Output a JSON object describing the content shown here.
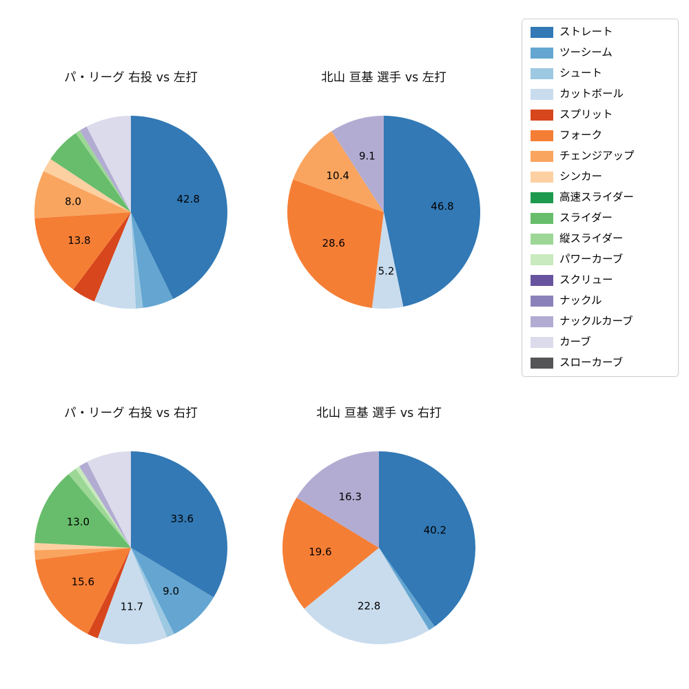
{
  "palette": {
    "ストレート": "#3279b5",
    "ツーシーム": "#64a6d1",
    "シュート": "#9dc8e2",
    "カットボール": "#c9dcee",
    "スプリット": "#d7461d",
    "フォーク": "#f57e35",
    "チェンジアップ": "#faa55f",
    "シンカー": "#fdd0a2",
    "高速スライダー": "#1d9a4e",
    "スライダー": "#67bd6b",
    "縦スライダー": "#9cd796",
    "パワーカーブ": "#c8eabe",
    "スクリュー": "#68549e",
    "ナックル": "#8b81ba",
    "ナックルカーブ": "#b2acd2",
    "カーブ": "#dcdbec",
    "スローカーブ": "#555557"
  },
  "legend": {
    "position": "upper right",
    "items": [
      "ストレート",
      "ツーシーム",
      "シュート",
      "カットボール",
      "スプリット",
      "フォーク",
      "チェンジアップ",
      "シンカー",
      "高速スライダー",
      "スライダー",
      "縦スライダー",
      "パワーカーブ",
      "スクリュー",
      "ナックル",
      "ナックルカーブ",
      "カーブ",
      "スローカーブ"
    ]
  },
  "chart_data": [
    {
      "type": "pie",
      "title": "パ・リーグ 右投 vs 左打",
      "start_angle": "top",
      "direction": "clockwise",
      "slices": [
        {
          "name": "ストレート",
          "value": 42.8,
          "show_value": true
        },
        {
          "name": "ツーシーム",
          "value": 5.2,
          "show_value": false
        },
        {
          "name": "シュート",
          "value": 1.2,
          "show_value": false
        },
        {
          "name": "カットボール",
          "value": 7.0,
          "show_value": false
        },
        {
          "name": "スプリット",
          "value": 4.0,
          "show_value": false
        },
        {
          "name": "フォーク",
          "value": 13.8,
          "show_value": true
        },
        {
          "name": "チェンジアップ",
          "value": 8.0,
          "show_value": true
        },
        {
          "name": "シンカー",
          "value": 2.3,
          "show_value": false
        },
        {
          "name": "スライダー",
          "value": 6.0,
          "show_value": false
        },
        {
          "name": "縦スライダー",
          "value": 0.8,
          "show_value": false
        },
        {
          "name": "ナックルカーブ",
          "value": 1.3,
          "show_value": false
        },
        {
          "name": "カーブ",
          "value": 7.6,
          "show_value": false
        }
      ]
    },
    {
      "type": "pie",
      "title": "北山 亘基 選手 vs 左打",
      "start_angle": "top",
      "direction": "clockwise",
      "slices": [
        {
          "name": "ストレート",
          "value": 46.8,
          "show_value": true
        },
        {
          "name": "カットボール",
          "value": 5.2,
          "show_value": true
        },
        {
          "name": "フォーク",
          "value": 28.6,
          "show_value": true
        },
        {
          "name": "チェンジアップ",
          "value": 10.4,
          "show_value": true
        },
        {
          "name": "ナックルカーブ",
          "value": 9.1,
          "show_value": true
        }
      ]
    },
    {
      "type": "pie",
      "title": "パ・リーグ 右投 vs 右打",
      "start_angle": "top",
      "direction": "clockwise",
      "slices": [
        {
          "name": "ストレート",
          "value": 33.6,
          "show_value": true
        },
        {
          "name": "ツーシーム",
          "value": 9.0,
          "show_value": true
        },
        {
          "name": "シュート",
          "value": 1.3,
          "show_value": false
        },
        {
          "name": "カットボール",
          "value": 11.7,
          "show_value": true
        },
        {
          "name": "スプリット",
          "value": 1.8,
          "show_value": false
        },
        {
          "name": "フォーク",
          "value": 15.6,
          "show_value": true
        },
        {
          "name": "チェンジアップ",
          "value": 1.6,
          "show_value": false
        },
        {
          "name": "シンカー",
          "value": 1.2,
          "show_value": false
        },
        {
          "name": "スライダー",
          "value": 13.0,
          "show_value": true
        },
        {
          "name": "縦スライダー",
          "value": 1.5,
          "show_value": false
        },
        {
          "name": "パワーカーブ",
          "value": 0.7,
          "show_value": false
        },
        {
          "name": "ナックルカーブ",
          "value": 1.5,
          "show_value": false
        },
        {
          "name": "カーブ",
          "value": 7.5,
          "show_value": false
        }
      ]
    },
    {
      "type": "pie",
      "title": "北山 亘基 選手 vs 右打",
      "start_angle": "top",
      "direction": "clockwise",
      "slices": [
        {
          "name": "ストレート",
          "value": 40.2,
          "show_value": true
        },
        {
          "name": "ツーシーム",
          "value": 1.1,
          "show_value": false
        },
        {
          "name": "カットボール",
          "value": 22.8,
          "show_value": true
        },
        {
          "name": "フォーク",
          "value": 19.6,
          "show_value": true
        },
        {
          "name": "ナックルカーブ",
          "value": 16.3,
          "show_value": true
        }
      ]
    }
  ]
}
